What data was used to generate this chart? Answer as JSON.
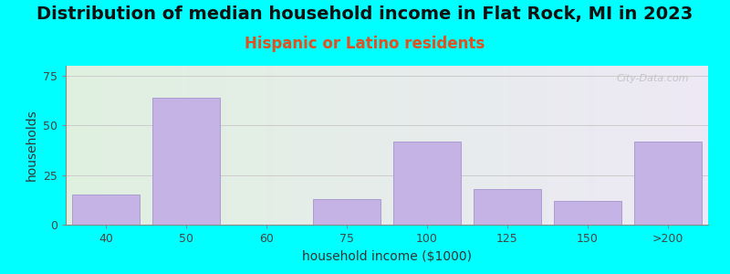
{
  "title": "Distribution of median household income in Flat Rock, MI in 2023",
  "subtitle": "Hispanic or Latino residents",
  "xlabel": "household income ($1000)",
  "ylabel": "households",
  "background_color": "#00FFFF",
  "bar_color": "#c5b3e6",
  "bar_edge_color": "#9b88c8",
  "categories": [
    "40",
    "50",
    "60",
    "75",
    "100",
    "125",
    "150",
    ">200"
  ],
  "values": [
    15,
    64,
    0,
    13,
    42,
    18,
    12,
    42
  ],
  "ylim": [
    0,
    80
  ],
  "yticks": [
    0,
    25,
    50,
    75
  ],
  "title_fontsize": 14,
  "subtitle_fontsize": 12,
  "subtitle_color": "#e05020",
  "axis_label_fontsize": 10,
  "watermark": "City-Data.com",
  "grid_color": "#cccccc",
  "grad_left": "#dff0df",
  "grad_right": "#ede8f5"
}
